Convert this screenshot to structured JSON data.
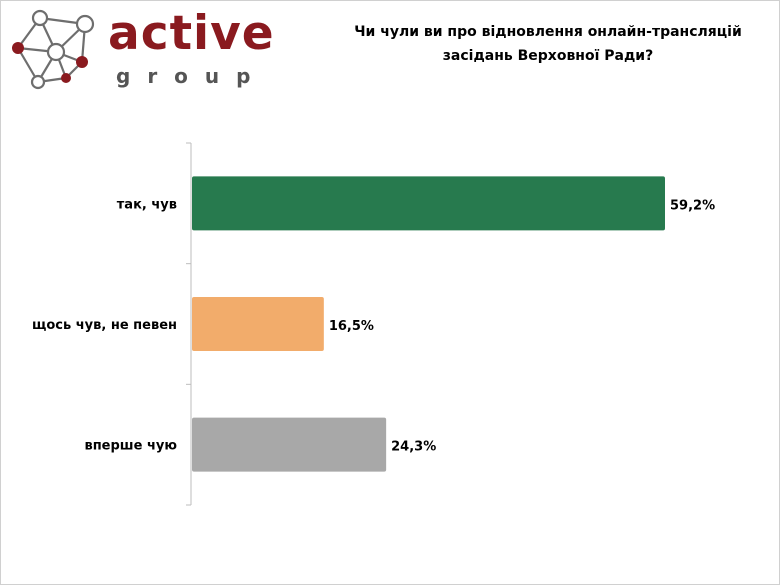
{
  "logo": {
    "word": "active",
    "sub": "group",
    "accent_color": "#8a1a1f",
    "node_color": "#8a1a1f",
    "line_color": "#6e6e6e"
  },
  "chart_data": {
    "type": "bar",
    "orientation": "horizontal",
    "title": "Чи чули ви про відновлення онлайн-трансляцій\nзасідань Верховної Ради?",
    "categories": [
      "так, чув",
      "щось чув, не певен",
      "вперше чую"
    ],
    "values": [
      59.2,
      16.5,
      24.3
    ],
    "value_labels": [
      "59,2%",
      "16,5%",
      "24,3%"
    ],
    "colors": [
      "#277a4e",
      "#f2ac6b",
      "#a8a8a8"
    ],
    "xlabel": "",
    "ylabel": "",
    "xlim": [
      0,
      65
    ],
    "grid": false,
    "legend": "none"
  }
}
